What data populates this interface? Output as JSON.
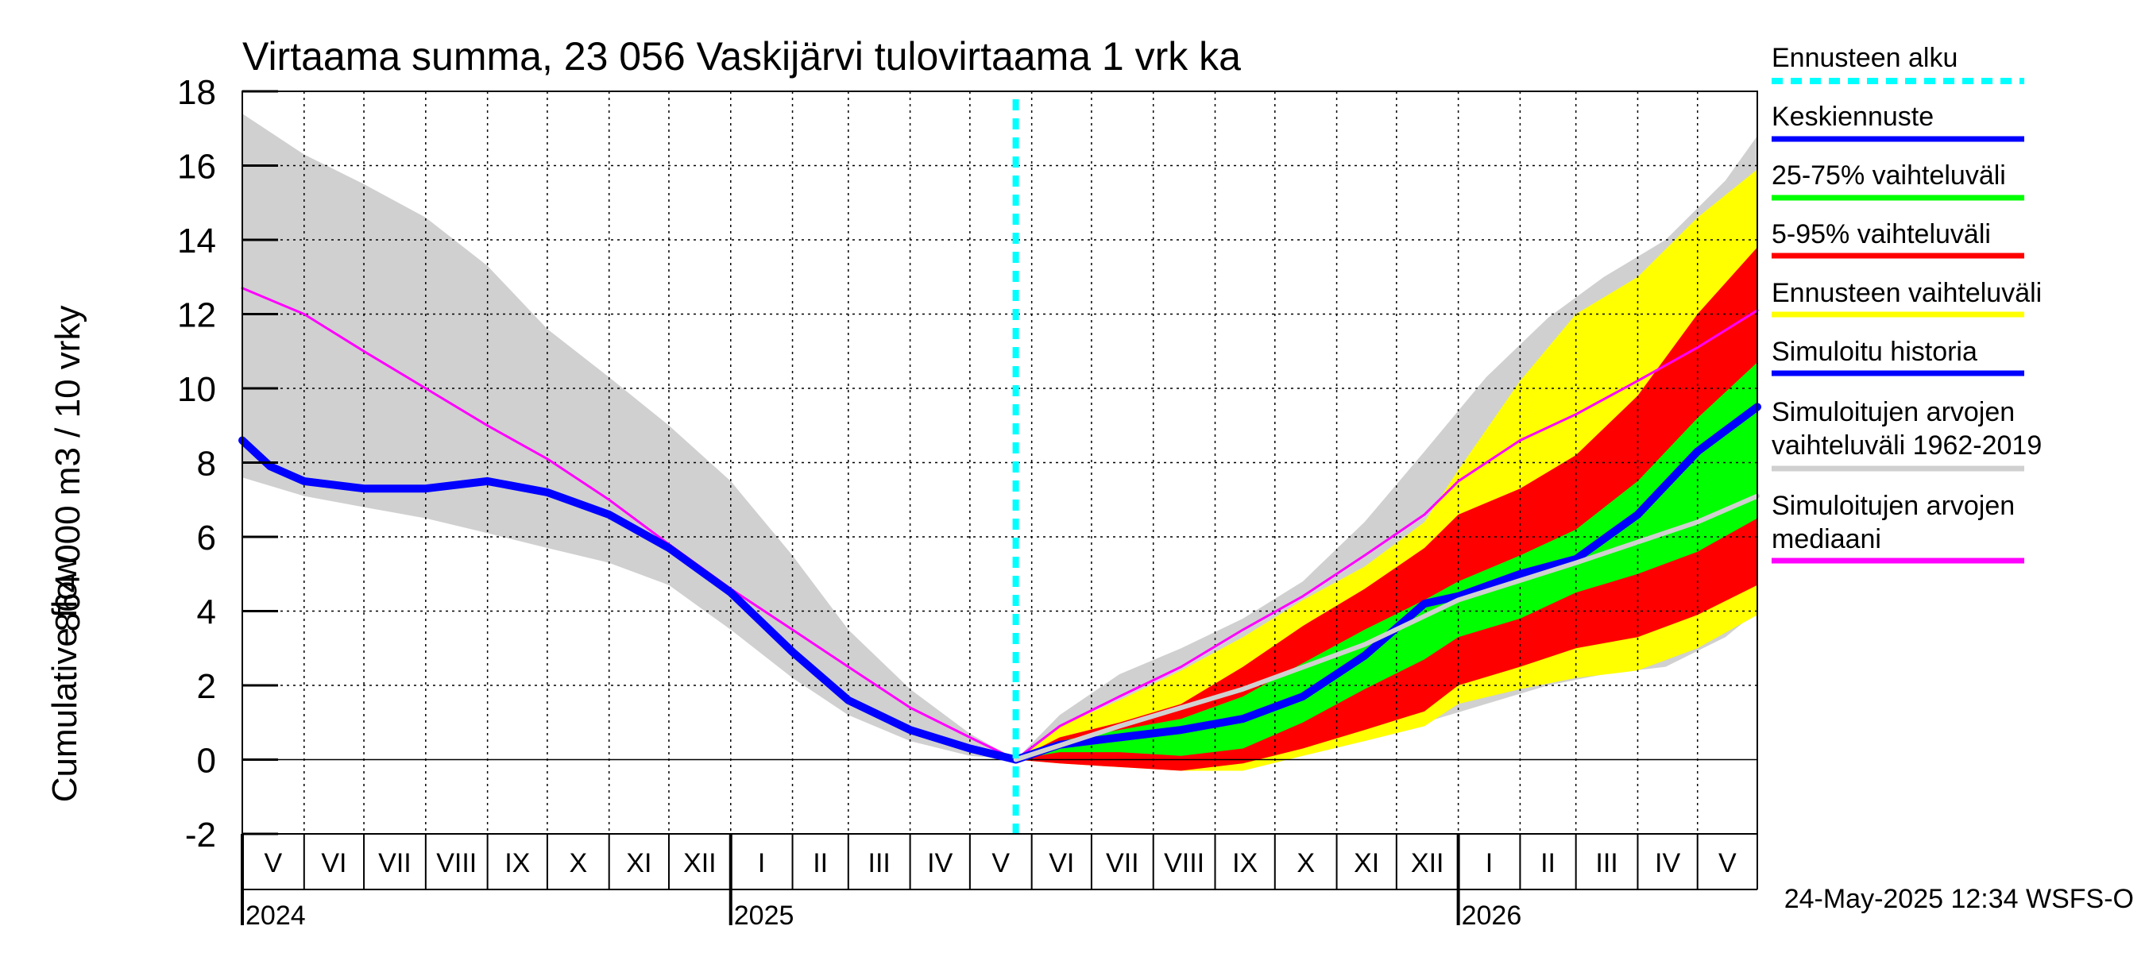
{
  "chart_data": {
    "type": "area",
    "title": "Virtaama summa, 23 056 Vaskijärvi tulovirtaama 1 vrk ka",
    "ylabel_fi": "864 000 m3 / 10 vrky",
    "ylabel_en": "Cumulative flow",
    "ylim": [
      -2,
      18
    ],
    "y_ticks": [
      -2,
      0,
      2,
      4,
      6,
      8,
      10,
      12,
      14,
      16,
      18
    ],
    "x_range": [
      "2024-05-01",
      "2026-05-31"
    ],
    "forecast_start": "2025-05-24",
    "grid": true,
    "legend_position": "right",
    "month_labels": [
      {
        "label": "V",
        "date": "2024-05-01"
      },
      {
        "label": "VI",
        "date": "2024-06-01"
      },
      {
        "label": "VII",
        "date": "2024-07-01"
      },
      {
        "label": "VIII",
        "date": "2024-08-01"
      },
      {
        "label": "IX",
        "date": "2024-09-01"
      },
      {
        "label": "X",
        "date": "2024-10-01"
      },
      {
        "label": "XI",
        "date": "2024-11-01"
      },
      {
        "label": "XII",
        "date": "2024-12-01"
      },
      {
        "label": "I",
        "date": "2025-01-01"
      },
      {
        "label": "II",
        "date": "2025-02-01"
      },
      {
        "label": "III",
        "date": "2025-03-01"
      },
      {
        "label": "IV",
        "date": "2025-04-01"
      },
      {
        "label": "V",
        "date": "2025-05-01"
      },
      {
        "label": "VI",
        "date": "2025-06-01"
      },
      {
        "label": "VII",
        "date": "2025-07-01"
      },
      {
        "label": "VIII",
        "date": "2025-08-01"
      },
      {
        "label": "IX",
        "date": "2025-09-01"
      },
      {
        "label": "X",
        "date": "2025-10-01"
      },
      {
        "label": "XI",
        "date": "2025-11-01"
      },
      {
        "label": "XII",
        "date": "2025-12-01"
      },
      {
        "label": "I",
        "date": "2026-01-01"
      },
      {
        "label": "II",
        "date": "2026-02-01"
      },
      {
        "label": "III",
        "date": "2026-03-01"
      },
      {
        "label": "IV",
        "date": "2026-04-01"
      },
      {
        "label": "V",
        "date": "2026-05-01"
      }
    ],
    "year_labels": [
      {
        "label": "2024",
        "date": "2024-05-01"
      },
      {
        "label": "2025",
        "date": "2025-01-01"
      },
      {
        "label": "2026",
        "date": "2026-01-01"
      }
    ],
    "series": [
      {
        "name": "Simuloitujen arvojen vaihteluväli 1962-2019",
        "kind": "band",
        "color": "#d0d0d0",
        "upper": [
          [
            "2024-05-01",
            17.4
          ],
          [
            "2024-06-01",
            16.3
          ],
          [
            "2024-07-01",
            15.5
          ],
          [
            "2024-08-01",
            14.6
          ],
          [
            "2024-09-01",
            13.3
          ],
          [
            "2024-10-01",
            11.6
          ],
          [
            "2024-11-01",
            10.3
          ],
          [
            "2024-12-01",
            9.0
          ],
          [
            "2025-01-01",
            7.5
          ],
          [
            "2025-02-01",
            5.5
          ],
          [
            "2025-03-01",
            3.5
          ],
          [
            "2025-04-01",
            1.9
          ],
          [
            "2025-05-01",
            0.7
          ],
          [
            "2025-05-24",
            0.0
          ],
          [
            "2025-06-15",
            1.2
          ],
          [
            "2025-07-15",
            2.3
          ],
          [
            "2025-08-15",
            3.0
          ],
          [
            "2025-09-15",
            3.8
          ],
          [
            "2025-10-15",
            4.8
          ],
          [
            "2025-11-15",
            6.4
          ],
          [
            "2025-12-15",
            8.3
          ],
          [
            "2026-01-15",
            10.3
          ],
          [
            "2026-02-15",
            11.9
          ],
          [
            "2026-03-15",
            13.0
          ],
          [
            "2026-04-15",
            14.0
          ],
          [
            "2026-05-15",
            15.6
          ],
          [
            "2026-05-31",
            16.8
          ]
        ],
        "lower": [
          [
            "2024-05-01",
            7.6
          ],
          [
            "2024-06-01",
            7.1
          ],
          [
            "2024-07-01",
            6.8
          ],
          [
            "2024-08-01",
            6.5
          ],
          [
            "2024-09-01",
            6.1
          ],
          [
            "2024-10-01",
            5.7
          ],
          [
            "2024-11-01",
            5.3
          ],
          [
            "2024-12-01",
            4.7
          ],
          [
            "2025-01-01",
            3.5
          ],
          [
            "2025-02-01",
            2.2
          ],
          [
            "2025-03-01",
            1.2
          ],
          [
            "2025-04-01",
            0.5
          ],
          [
            "2025-05-01",
            0.1
          ],
          [
            "2025-05-24",
            0.0
          ],
          [
            "2025-06-15",
            -0.1
          ],
          [
            "2025-07-15",
            -0.2
          ],
          [
            "2025-08-15",
            -0.2
          ],
          [
            "2025-09-15",
            -0.1
          ],
          [
            "2025-10-15",
            0.2
          ],
          [
            "2025-11-15",
            0.6
          ],
          [
            "2025-12-15",
            1.0
          ],
          [
            "2026-01-15",
            1.5
          ],
          [
            "2026-02-15",
            2.0
          ],
          [
            "2026-03-15",
            2.3
          ],
          [
            "2026-04-15",
            2.5
          ],
          [
            "2026-05-15",
            3.3
          ],
          [
            "2026-05-31",
            4.0
          ]
        ]
      },
      {
        "name": "Ennusteen vaihteluväli",
        "kind": "band",
        "color": "#ffff00",
        "upper": [
          [
            "2025-05-24",
            0.0
          ],
          [
            "2025-06-15",
            0.9
          ],
          [
            "2025-07-15",
            1.6
          ],
          [
            "2025-08-15",
            2.4
          ],
          [
            "2025-09-15",
            3.3
          ],
          [
            "2025-10-15",
            4.3
          ],
          [
            "2025-11-15",
            5.2
          ],
          [
            "2025-12-15",
            6.4
          ],
          [
            "2026-01-01",
            7.8
          ],
          [
            "2026-02-01",
            10.2
          ],
          [
            "2026-03-01",
            12.0
          ],
          [
            "2026-04-01",
            13.0
          ],
          [
            "2026-05-01",
            14.6
          ],
          [
            "2026-05-31",
            15.9
          ]
        ],
        "lower": [
          [
            "2025-05-24",
            0.0
          ],
          [
            "2025-06-15",
            -0.1
          ],
          [
            "2025-07-15",
            -0.2
          ],
          [
            "2025-08-15",
            -0.3
          ],
          [
            "2025-09-15",
            -0.3
          ],
          [
            "2025-10-15",
            0.1
          ],
          [
            "2025-11-15",
            0.5
          ],
          [
            "2025-12-15",
            0.9
          ],
          [
            "2026-01-01",
            1.5
          ],
          [
            "2026-02-01",
            1.9
          ],
          [
            "2026-03-01",
            2.2
          ],
          [
            "2026-04-01",
            2.4
          ],
          [
            "2026-05-01",
            3.0
          ],
          [
            "2026-05-31",
            3.9
          ]
        ]
      },
      {
        "name": "5-95% vaihteluväli",
        "kind": "band",
        "color": "#ff0000",
        "upper": [
          [
            "2025-05-24",
            0.0
          ],
          [
            "2025-06-15",
            0.6
          ],
          [
            "2025-07-15",
            1.0
          ],
          [
            "2025-08-15",
            1.5
          ],
          [
            "2025-09-15",
            2.5
          ],
          [
            "2025-10-15",
            3.6
          ],
          [
            "2025-11-15",
            4.6
          ],
          [
            "2025-12-15",
            5.7
          ],
          [
            "2026-01-01",
            6.6
          ],
          [
            "2026-02-01",
            7.3
          ],
          [
            "2026-03-01",
            8.2
          ],
          [
            "2026-04-01",
            9.8
          ],
          [
            "2026-05-01",
            12.0
          ],
          [
            "2026-05-31",
            13.8
          ]
        ],
        "lower": [
          [
            "2025-05-24",
            0.0
          ],
          [
            "2025-06-15",
            -0.1
          ],
          [
            "2025-07-15",
            -0.2
          ],
          [
            "2025-08-15",
            -0.3
          ],
          [
            "2025-09-15",
            -0.1
          ],
          [
            "2025-10-15",
            0.3
          ],
          [
            "2025-11-15",
            0.8
          ],
          [
            "2025-12-15",
            1.3
          ],
          [
            "2026-01-01",
            2.0
          ],
          [
            "2026-02-01",
            2.5
          ],
          [
            "2026-03-01",
            3.0
          ],
          [
            "2026-04-01",
            3.3
          ],
          [
            "2026-05-01",
            3.9
          ],
          [
            "2026-05-31",
            4.7
          ]
        ]
      },
      {
        "name": "25-75% vaihteluväli",
        "kind": "band",
        "color": "#00ff00",
        "upper": [
          [
            "2025-05-24",
            0.0
          ],
          [
            "2025-06-15",
            0.5
          ],
          [
            "2025-07-15",
            0.8
          ],
          [
            "2025-08-15",
            1.1
          ],
          [
            "2025-09-15",
            1.7
          ],
          [
            "2025-10-15",
            2.6
          ],
          [
            "2025-11-15",
            3.5
          ],
          [
            "2025-12-15",
            4.3
          ],
          [
            "2026-01-01",
            4.8
          ],
          [
            "2026-02-01",
            5.5
          ],
          [
            "2026-03-01",
            6.2
          ],
          [
            "2026-04-01",
            7.5
          ],
          [
            "2026-05-01",
            9.2
          ],
          [
            "2026-05-31",
            10.7
          ]
        ],
        "lower": [
          [
            "2025-05-24",
            0.0
          ],
          [
            "2025-06-15",
            0.2
          ],
          [
            "2025-07-15",
            0.2
          ],
          [
            "2025-08-15",
            0.1
          ],
          [
            "2025-09-15",
            0.3
          ],
          [
            "2025-10-15",
            1.0
          ],
          [
            "2025-11-15",
            1.9
          ],
          [
            "2025-12-15",
            2.7
          ],
          [
            "2026-01-01",
            3.3
          ],
          [
            "2026-02-01",
            3.8
          ],
          [
            "2026-03-01",
            4.5
          ],
          [
            "2026-04-01",
            5.0
          ],
          [
            "2026-05-01",
            5.6
          ],
          [
            "2026-05-31",
            6.5
          ]
        ]
      },
      {
        "name": "Simuloitujen arvojen mediaani",
        "kind": "line",
        "color": "#ff00ff",
        "width": 3,
        "points": [
          [
            "2024-05-01",
            12.7
          ],
          [
            "2024-06-01",
            12.0
          ],
          [
            "2024-07-01",
            11.0
          ],
          [
            "2024-08-01",
            10.0
          ],
          [
            "2024-09-01",
            9.0
          ],
          [
            "2024-10-01",
            8.1
          ],
          [
            "2024-11-01",
            7.0
          ],
          [
            "2024-12-01",
            5.8
          ],
          [
            "2025-01-01",
            4.6
          ],
          [
            "2025-02-01",
            3.5
          ],
          [
            "2025-03-01",
            2.5
          ],
          [
            "2025-04-01",
            1.4
          ],
          [
            "2025-05-01",
            0.6
          ],
          [
            "2025-05-24",
            0.0
          ],
          [
            "2025-06-15",
            0.9
          ],
          [
            "2025-07-15",
            1.7
          ],
          [
            "2025-08-15",
            2.5
          ],
          [
            "2025-09-15",
            3.5
          ],
          [
            "2025-10-15",
            4.4
          ],
          [
            "2025-11-15",
            5.5
          ],
          [
            "2025-12-15",
            6.6
          ],
          [
            "2026-01-01",
            7.5
          ],
          [
            "2026-02-01",
            8.6
          ],
          [
            "2026-03-01",
            9.3
          ],
          [
            "2026-04-01",
            10.2
          ],
          [
            "2026-05-01",
            11.1
          ],
          [
            "2026-05-31",
            12.1
          ]
        ]
      },
      {
        "name": "Simuloitu historia",
        "kind": "line",
        "color": "#0000ff",
        "width": 10,
        "points": [
          [
            "2024-05-01",
            8.6
          ],
          [
            "2024-05-15",
            7.9
          ],
          [
            "2024-06-01",
            7.5
          ],
          [
            "2024-07-01",
            7.3
          ],
          [
            "2024-08-01",
            7.3
          ],
          [
            "2024-09-01",
            7.5
          ],
          [
            "2024-10-01",
            7.2
          ],
          [
            "2024-11-01",
            6.6
          ],
          [
            "2024-12-01",
            5.7
          ],
          [
            "2025-01-01",
            4.5
          ],
          [
            "2025-02-01",
            2.9
          ],
          [
            "2025-03-01",
            1.6
          ],
          [
            "2025-04-01",
            0.8
          ],
          [
            "2025-05-01",
            0.3
          ],
          [
            "2025-05-24",
            0.0
          ]
        ]
      },
      {
        "name": "Keskiennuste",
        "kind": "line",
        "color": "#0000ff",
        "width": 10,
        "points": [
          [
            "2025-05-24",
            0.0
          ],
          [
            "2025-06-15",
            0.4
          ],
          [
            "2025-07-15",
            0.6
          ],
          [
            "2025-08-15",
            0.8
          ],
          [
            "2025-09-15",
            1.1
          ],
          [
            "2025-10-15",
            1.7
          ],
          [
            "2025-11-15",
            2.8
          ],
          [
            "2025-12-15",
            4.2
          ],
          [
            "2026-01-01",
            4.4
          ],
          [
            "2026-02-01",
            5.0
          ],
          [
            "2026-03-01",
            5.4
          ],
          [
            "2026-04-01",
            6.6
          ],
          [
            "2026-05-01",
            8.3
          ],
          [
            "2026-05-31",
            9.5
          ]
        ]
      },
      {
        "name": "Simuloitujen arvojen mediaani (ennuste)",
        "kind": "line",
        "color": "#d0d0d0",
        "width": 6,
        "points": [
          [
            "2025-05-24",
            0.0
          ],
          [
            "2025-07-15",
            0.9
          ],
          [
            "2025-09-15",
            1.9
          ],
          [
            "2025-11-15",
            3.1
          ],
          [
            "2026-01-01",
            4.3
          ],
          [
            "2026-03-01",
            5.3
          ],
          [
            "2026-05-01",
            6.4
          ],
          [
            "2026-05-31",
            7.1
          ]
        ]
      }
    ]
  },
  "legend": [
    {
      "label": "Ennusteen alku",
      "color": "#00ffff",
      "dashed": true
    },
    {
      "label": "Keskiennuste",
      "color": "#0000ff"
    },
    {
      "label": "25-75% vaihteluväli",
      "color": "#00ff00"
    },
    {
      "label": "5-95% vaihteluväli",
      "color": "#ff0000"
    },
    {
      "label": "Ennusteen vaihteluväli",
      "color": "#ffff00"
    },
    {
      "label": "Simuloitu historia",
      "color": "#0000ff"
    },
    {
      "label": "Simuloitujen arvojen vaihteluväli 1962-2019",
      "label_line1": "Simuloitujen arvojen",
      "label_line2": "vaihteluväli 1962-2019",
      "color": "#d0d0d0"
    },
    {
      "label": "Simuloitujen arvojen mediaani",
      "label_line1": "Simuloitujen arvojen",
      "label_line2": "mediaani",
      "color": "#ff00ff"
    }
  ],
  "footer": "24-May-2025 12:34 WSFS-O"
}
